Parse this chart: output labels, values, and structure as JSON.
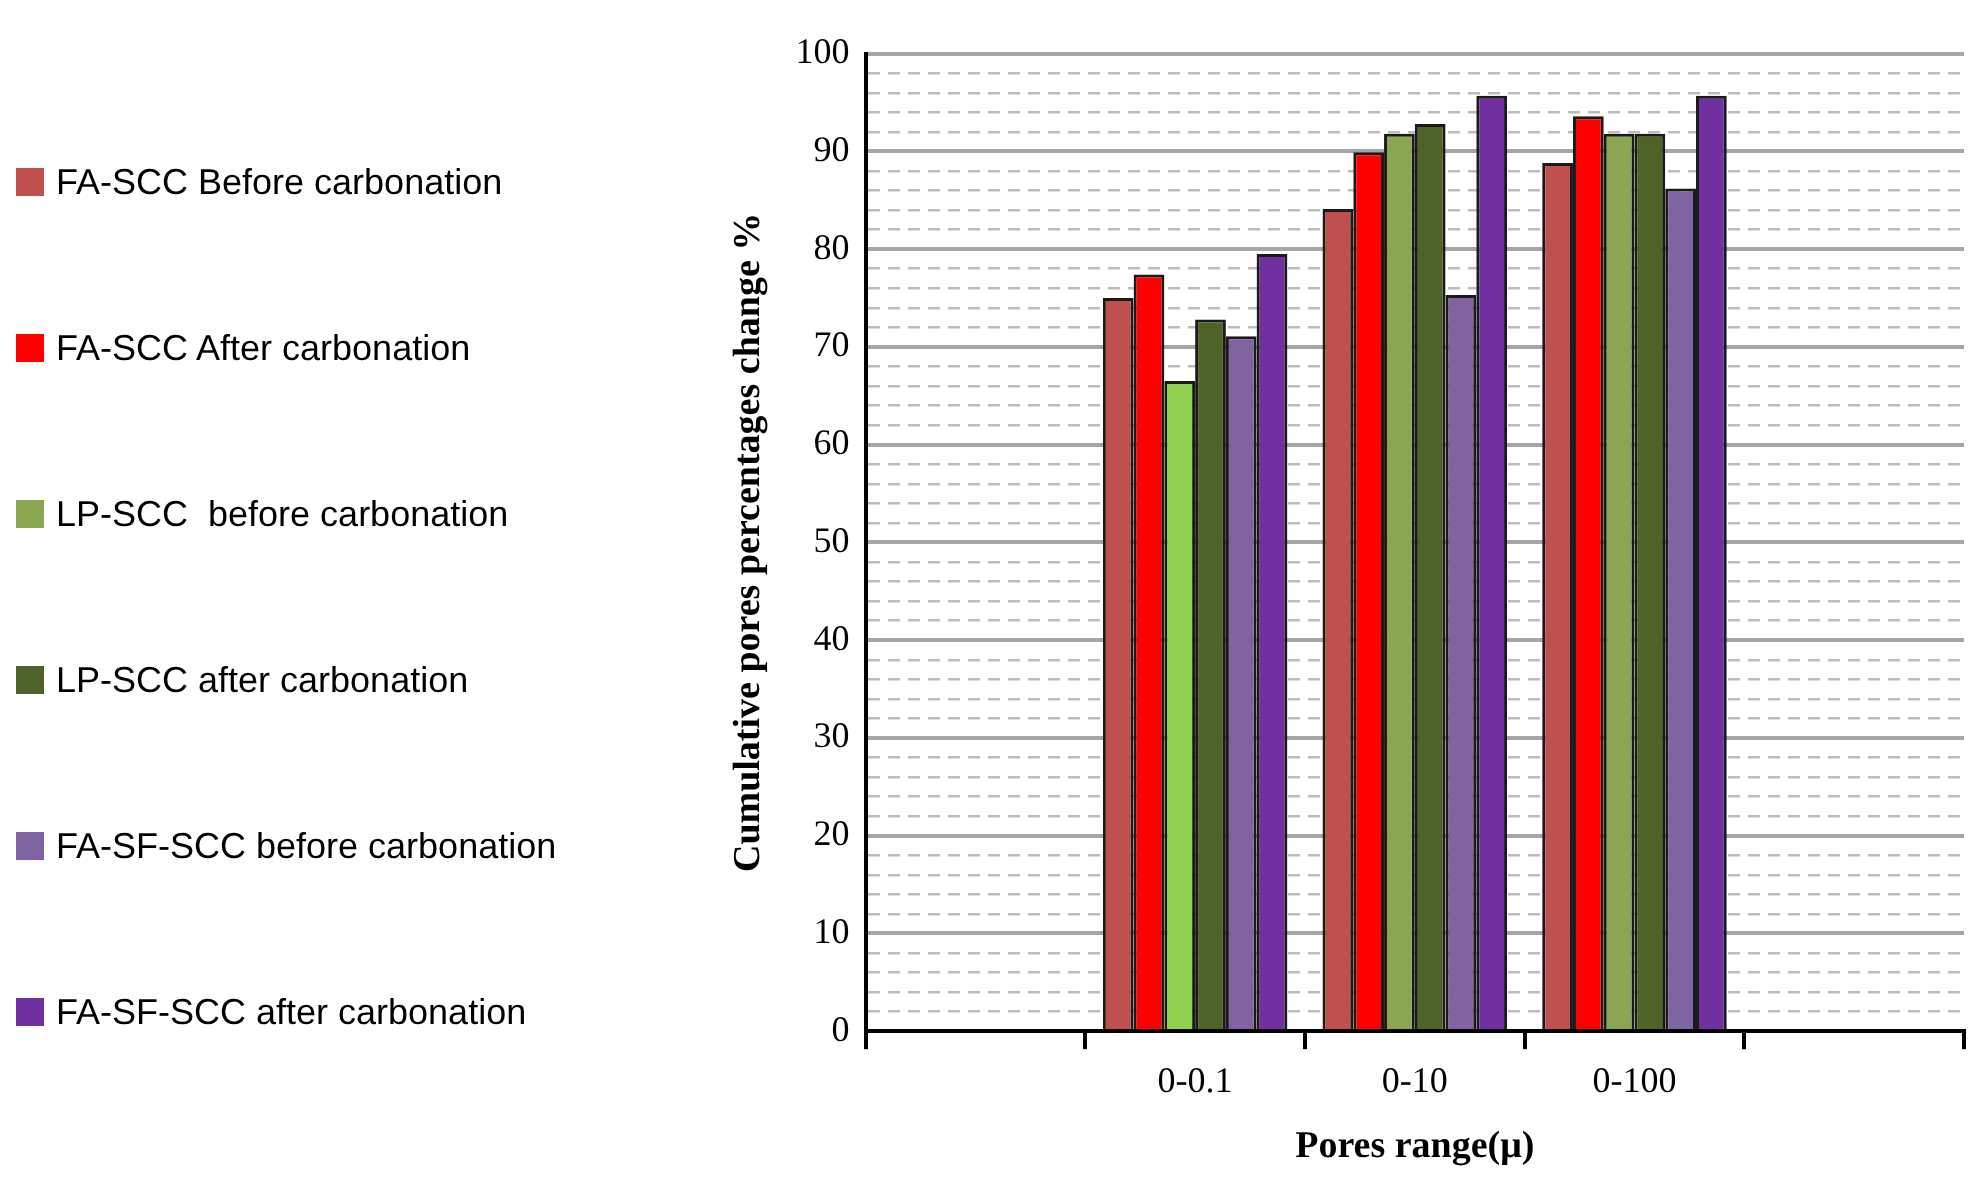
{
  "chart_data": {
    "type": "bar",
    "xlabel": "Pores range(μ)",
    "ylabel": "Cumulative pores percentages change %",
    "categories": [
      null,
      "0-0.1",
      "0-10",
      "0-100",
      null
    ],
    "series": [
      {
        "name": "FA-SCC Before carbonation",
        "color": "#c0504d",
        "values": [
          null,
          75.0,
          84.1,
          88.8,
          null
        ]
      },
      {
        "name": "FA-SCC After carbonation",
        "color": "#ff0000",
        "values": [
          null,
          77.4,
          89.9,
          93.6,
          null
        ]
      },
      {
        "name": "LP-SCC  before carbonation",
        "color": "#8ba650",
        "colors": [
          "#8ba650",
          "#92d050",
          "#8ba650",
          "#8ba650",
          "#8ba650"
        ],
        "values": [
          null,
          66.5,
          91.8,
          91.8,
          null
        ]
      },
      {
        "name": "LP-SCC after carbonation",
        "color": "#4f6228",
        "values": [
          null,
          72.8,
          92.8,
          91.8,
          null
        ]
      },
      {
        "name": "FA-SF-SCC before carbonation",
        "color": "#8064a2",
        "values": [
          null,
          71.1,
          75.3,
          86.2,
          null
        ]
      },
      {
        "name": "FA-SF-SCC after carbonation",
        "color": "#7030a0",
        "values": [
          null,
          79.5,
          95.7,
          95.7,
          null
        ]
      }
    ],
    "ylim": [
      0,
      100
    ],
    "yticks": [
      0,
      {
        "value": 2,
        "label": null
      },
      {
        "value": 4,
        "label": null
      },
      {
        "value": 6,
        "label": null
      },
      {
        "value": 8,
        "label": null
      },
      10,
      {
        "value": 12,
        "label": null
      },
      {
        "value": 14,
        "label": null
      },
      {
        "value": 16,
        "label": null
      },
      {
        "value": 18,
        "label": null
      },
      20,
      {
        "value": 22,
        "label": null
      },
      {
        "value": 24,
        "label": null
      },
      {
        "value": 26,
        "label": null
      },
      {
        "value": 28,
        "label": null
      },
      30,
      {
        "value": 32,
        "label": null
      },
      {
        "value": 34,
        "label": null
      },
      {
        "value": 36,
        "label": null
      },
      {
        "value": 38,
        "label": null
      },
      40,
      {
        "value": 42,
        "label": null
      },
      {
        "value": 44,
        "label": null
      },
      {
        "value": 46,
        "label": null
      },
      {
        "value": 48,
        "label": null
      },
      50,
      {
        "value": 52,
        "label": null
      },
      {
        "value": 54,
        "label": null
      },
      {
        "value": 56,
        "label": null
      },
      {
        "value": 58,
        "label": null
      },
      60,
      {
        "value": 62,
        "label": null
      },
      {
        "value": 64,
        "label": null
      },
      {
        "value": 66,
        "label": null
      },
      {
        "value": 68,
        "label": null
      },
      70,
      {
        "value": 72,
        "label": null
      },
      {
        "value": 74,
        "label": null
      },
      {
        "value": 76,
        "label": null
      },
      {
        "value": 78,
        "label": null
      },
      80,
      {
        "value": 82,
        "label": null
      },
      {
        "value": 84,
        "label": null
      },
      {
        "value": 86,
        "label": null
      },
      {
        "value": 88,
        "label": null
      },
      90,
      {
        "value": 92,
        "label": null
      },
      {
        "value": 94,
        "label": null
      },
      {
        "value": 96,
        "label": null
      },
      {
        "value": 98,
        "label": null
      },
      100
    ],
    "grid": "y",
    "legend": "left"
  }
}
